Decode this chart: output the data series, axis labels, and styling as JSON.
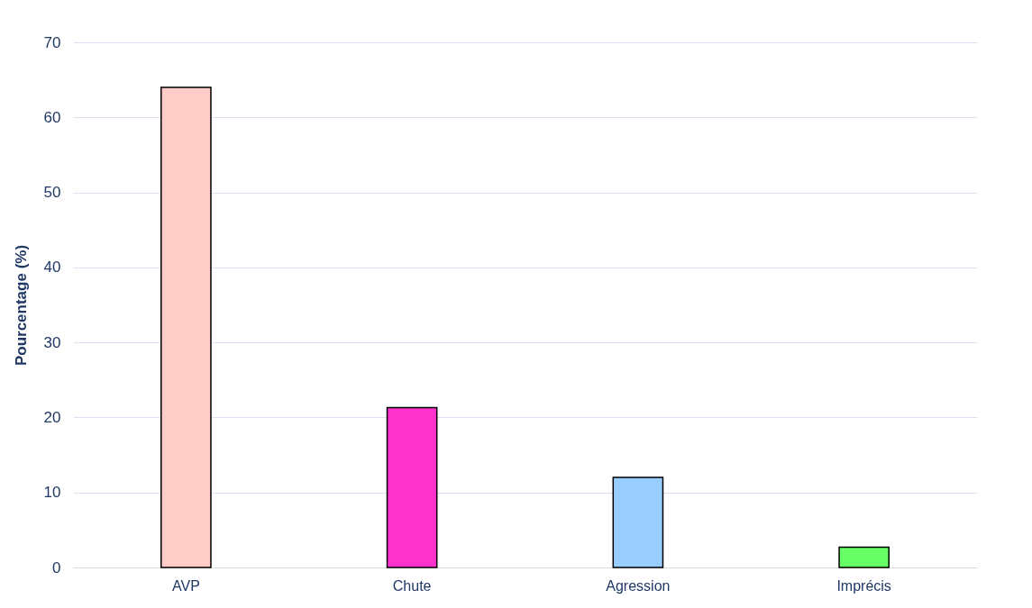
{
  "chart_data": {
    "type": "bar",
    "ylabel": "Pourcentage (%)",
    "categories": [
      "AVP",
      "Chute",
      "Agression",
      "Imprécis"
    ],
    "values": [
      64,
      21.3,
      12,
      2.7
    ],
    "colors": [
      "#ffccc8",
      "#ff33cc",
      "#99ccff",
      "#66ff66"
    ],
    "ylim": [
      0,
      70
    ],
    "yticks": [
      0,
      10,
      20,
      30,
      40,
      50,
      60,
      70
    ],
    "grid": "y"
  }
}
